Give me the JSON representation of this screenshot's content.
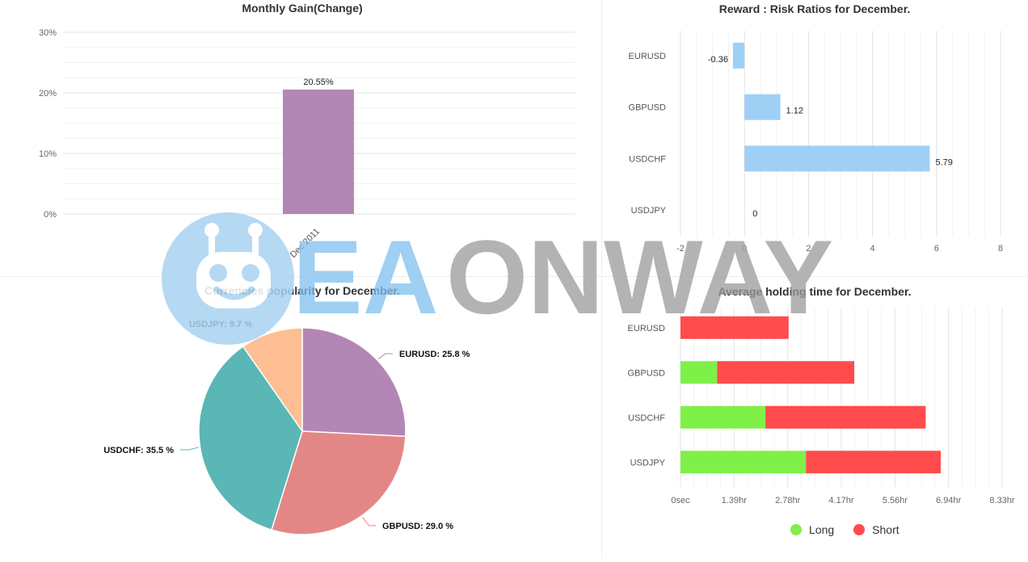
{
  "chart_data": [
    {
      "id": "monthly",
      "type": "bar",
      "title": "Monthly Gain(Change)",
      "categories": [
        "Dec 2011"
      ],
      "values": [
        20.55
      ],
      "data_labels": [
        "20.55%"
      ],
      "yticks": [
        "0%",
        "10%",
        "20%",
        "30%"
      ],
      "ylim": [
        0,
        30
      ],
      "color": "#b387b5"
    },
    {
      "id": "reward",
      "type": "bar",
      "orientation": "horizontal",
      "title": "Reward : Risk Ratios for December.",
      "categories": [
        "EURUSD",
        "GBPUSD",
        "USDCHF",
        "USDJPY"
      ],
      "values": [
        -0.36,
        1.12,
        5.79,
        0
      ],
      "data_labels": [
        "-0.36",
        "1.12",
        "5.79",
        "0"
      ],
      "xticks": [
        "-2",
        "0",
        "2",
        "4",
        "6",
        "8"
      ],
      "xlim": [
        -2,
        8
      ],
      "color": "#a0cff5"
    },
    {
      "id": "popularity",
      "type": "pie",
      "title": "Currencies popularity for December.",
      "slices": [
        {
          "label": "EURUSD: 25.8 %",
          "value": 25.8,
          "color": "#b387b5"
        },
        {
          "label": "GBPUSD: 29.0 %",
          "value": 29.0,
          "color": "#e38786"
        },
        {
          "label": "USDCHF: 35.5 %",
          "value": 35.5,
          "color": "#5bb6b6"
        },
        {
          "label": "USDJPY: 9.7 %",
          "value": 9.7,
          "color": "#febe94"
        }
      ]
    },
    {
      "id": "holding",
      "type": "bar",
      "orientation": "horizontal",
      "stacked": true,
      "title": "Average holding time for December.",
      "categories": [
        "EURUSD",
        "GBPUSD",
        "USDCHF",
        "USDJPY"
      ],
      "xticks": [
        "0sec",
        "1.39hr",
        "2.78hr",
        "4.17hr",
        "5.56hr",
        "6.94hr",
        "8.33hr"
      ],
      "xlim_hours": [
        0,
        8.33
      ],
      "series": [
        {
          "name": "Long",
          "color": "#7ff048",
          "values_hours": [
            0,
            0.95,
            2.2,
            3.25
          ]
        },
        {
          "name": "Short",
          "color": "#ff4b4b",
          "values_hours": [
            2.8,
            3.55,
            4.15,
            3.49
          ]
        }
      ]
    }
  ],
  "watermark": {
    "text_a": "EA",
    "text_b": "ONWAY",
    "brand_color": "#7fbfee",
    "text_color": "#9a9a9a"
  }
}
